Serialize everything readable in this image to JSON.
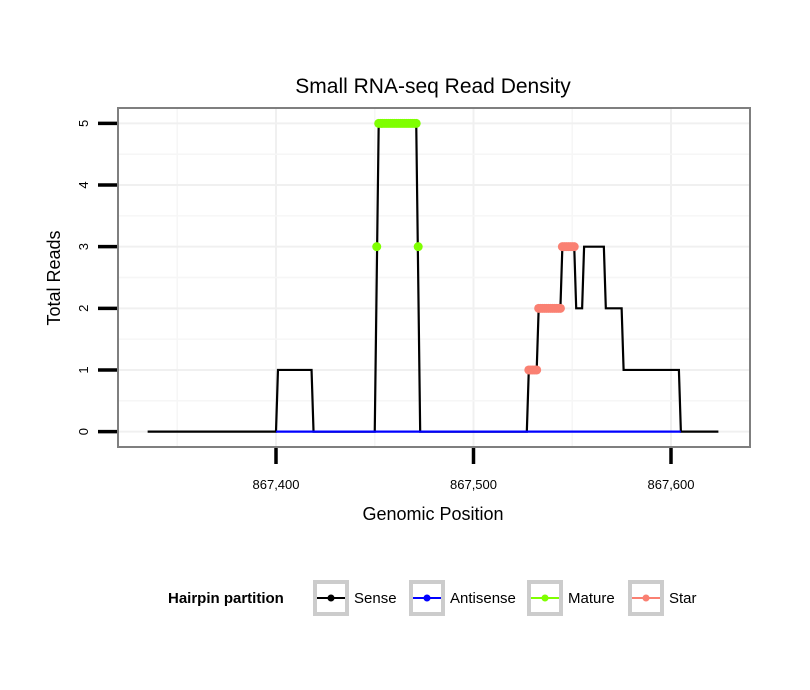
{
  "chart_data": {
    "type": "line",
    "title": "Small RNA-seq Read Density",
    "xlabel": "Genomic Position",
    "ylabel": "Total Reads",
    "xlim": [
      867320,
      867640
    ],
    "ylim": [
      -0.25,
      5.25
    ],
    "x_ticks": [
      867400,
      867500,
      867600
    ],
    "x_tick_labels": [
      "867,400",
      "867,500",
      "867,600"
    ],
    "y_ticks": [
      0,
      1,
      2,
      3,
      4,
      5
    ],
    "y_tick_labels": [
      "0",
      "1",
      "2",
      "3",
      "4",
      "5"
    ],
    "grid": true,
    "legend": {
      "title": "Hairpin partition",
      "position": "bottom",
      "entries": [
        {
          "name": "Sense",
          "color": "#000000"
        },
        {
          "name": "Antisense",
          "color": "#0000ff"
        },
        {
          "name": "Mature",
          "color": "#7fff00"
        },
        {
          "name": "Star",
          "color": "#fa8072"
        }
      ]
    },
    "series": [
      {
        "name": "Sense",
        "color": "#000000",
        "x": [
          867335,
          867400,
          867401,
          867418,
          867419,
          867450,
          867452,
          867471,
          867473,
          867527,
          867528,
          867532,
          867533,
          867544,
          867545,
          867551,
          867552,
          867555,
          867556,
          867566,
          867567,
          867575,
          867576,
          867604,
          867605,
          867624
        ],
        "y": [
          0,
          0,
          1,
          1,
          0,
          0,
          5,
          5,
          0,
          0,
          1,
          1,
          2,
          2,
          3,
          3,
          2,
          2,
          3,
          3,
          2,
          2,
          1,
          1,
          0,
          0
        ]
      },
      {
        "name": "Antisense",
        "color": "#0000ff",
        "x": [
          867400,
          867420,
          867450,
          867473,
          867528,
          867605
        ],
        "y": [
          0,
          0,
          0,
          0,
          0,
          0
        ]
      },
      {
        "name": "Mature",
        "color": "#7fff00",
        "x": [
          867451,
          867452,
          867453,
          867454,
          867455,
          867456,
          867457,
          867458,
          867459,
          867460,
          867461,
          867462,
          867463,
          867464,
          867465,
          867466,
          867467,
          867468,
          867469,
          867470,
          867471,
          867472
        ],
        "y": [
          3,
          5,
          5,
          5,
          5,
          5,
          5,
          5,
          5,
          5,
          5,
          5,
          5,
          5,
          5,
          5,
          5,
          5,
          5,
          5,
          5,
          3
        ]
      },
      {
        "name": "Star",
        "color": "#fa8072",
        "x": [
          867528,
          867529,
          867530,
          867531,
          867532,
          867533,
          867534,
          867535,
          867536,
          867537,
          867538,
          867539,
          867540,
          867541,
          867542,
          867543,
          867544,
          867545,
          867546,
          867547,
          867548,
          867549,
          867550,
          867551
        ],
        "y": [
          1,
          1,
          1,
          1,
          1,
          2,
          2,
          2,
          2,
          2,
          2,
          2,
          2,
          2,
          2,
          2,
          2,
          3,
          3,
          3,
          3,
          3,
          3,
          3
        ]
      }
    ]
  }
}
